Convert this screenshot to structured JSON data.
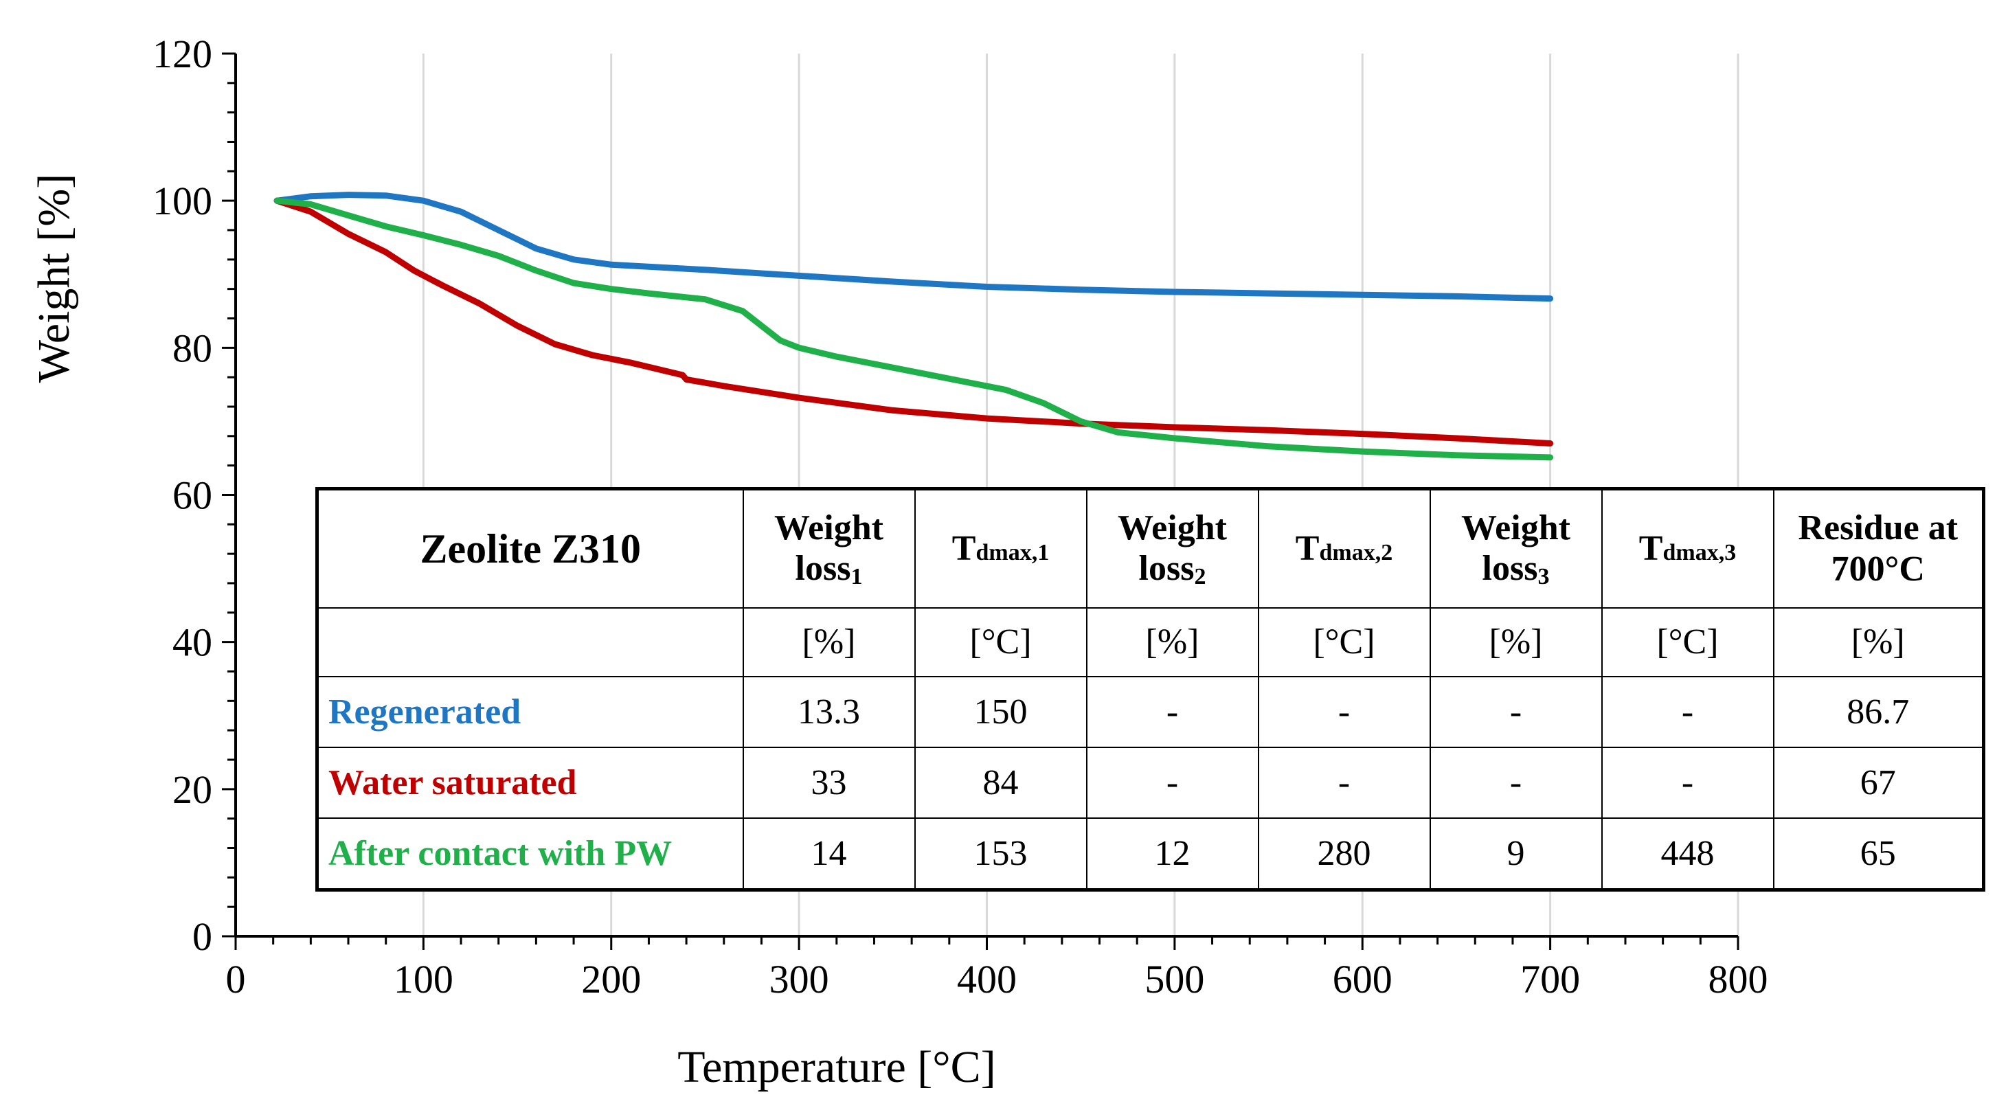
{
  "chart_data": {
    "type": "line",
    "xlabel": "Temperature [°C]",
    "ylabel": "Weight [%]",
    "xlim": [
      0,
      800
    ],
    "ylim": [
      0,
      120
    ],
    "x_ticks": [
      "0",
      "100",
      "200",
      "300",
      "400",
      "500",
      "600",
      "700",
      "800"
    ],
    "y_ticks": [
      "0",
      "20",
      "40",
      "60",
      "80",
      "100",
      "120"
    ],
    "grid": "vertical lines only",
    "series": [
      {
        "name": "Regenerated",
        "color": "#1f77c4",
        "points": [
          [
            22,
            100
          ],
          [
            40,
            100.6
          ],
          [
            60,
            100.8
          ],
          [
            80,
            100.7
          ],
          [
            100,
            100
          ],
          [
            120,
            98.5
          ],
          [
            140,
            96
          ],
          [
            160,
            93.5
          ],
          [
            180,
            92
          ],
          [
            200,
            91.3
          ],
          [
            250,
            90.6
          ],
          [
            300,
            89.8
          ],
          [
            350,
            89
          ],
          [
            400,
            88.3
          ],
          [
            450,
            87.9
          ],
          [
            500,
            87.6
          ],
          [
            550,
            87.4
          ],
          [
            600,
            87.2
          ],
          [
            650,
            87
          ],
          [
            700,
            86.7
          ]
        ]
      },
      {
        "name": "Water saturated",
        "color": "#c00000",
        "points": [
          [
            22,
            100
          ],
          [
            40,
            98.5
          ],
          [
            60,
            95.5
          ],
          [
            80,
            93
          ],
          [
            95,
            90.5
          ],
          [
            110,
            88.5
          ],
          [
            130,
            86
          ],
          [
            150,
            83
          ],
          [
            170,
            80.5
          ],
          [
            190,
            79
          ],
          [
            210,
            78
          ],
          [
            238,
            76.3
          ],
          [
            240,
            75.7
          ],
          [
            260,
            74.8
          ],
          [
            300,
            73.2
          ],
          [
            350,
            71.5
          ],
          [
            400,
            70.4
          ],
          [
            450,
            69.7
          ],
          [
            500,
            69.2
          ],
          [
            550,
            68.8
          ],
          [
            600,
            68.3
          ],
          [
            650,
            67.7
          ],
          [
            700,
            67
          ]
        ]
      },
      {
        "name": "After contact with PW",
        "color": "#1fb04a",
        "points": [
          [
            22,
            100
          ],
          [
            40,
            99.5
          ],
          [
            60,
            98
          ],
          [
            80,
            96.5
          ],
          [
            100,
            95.3
          ],
          [
            120,
            94
          ],
          [
            140,
            92.5
          ],
          [
            160,
            90.5
          ],
          [
            180,
            88.8
          ],
          [
            200,
            88
          ],
          [
            220,
            87.4
          ],
          [
            250,
            86.6
          ],
          [
            270,
            85
          ],
          [
            280,
            83
          ],
          [
            290,
            81
          ],
          [
            300,
            80
          ],
          [
            320,
            78.8
          ],
          [
            350,
            77.3
          ],
          [
            380,
            75.8
          ],
          [
            410,
            74.3
          ],
          [
            430,
            72.5
          ],
          [
            450,
            70
          ],
          [
            470,
            68.5
          ],
          [
            500,
            67.7
          ],
          [
            550,
            66.6
          ],
          [
            600,
            65.9
          ],
          [
            650,
            65.4
          ],
          [
            700,
            65.1
          ]
        ]
      }
    ]
  },
  "table": {
    "header": {
      "title": "Zeolite Z310",
      "col1": {
        "main": "Weight loss",
        "sub": "1"
      },
      "col2": {
        "main": "T",
        "sub": "dmax,1"
      },
      "col3": {
        "main": "Weight loss",
        "sub": "2"
      },
      "col4": {
        "main": "T",
        "sub": "dmax,2"
      },
      "col5": {
        "main": "Weight loss",
        "sub": "3"
      },
      "col6": {
        "main": "T",
        "sub": "dmax,3"
      },
      "col7": "Residue at 700°C"
    },
    "units": [
      "",
      "[%]",
      "[°C]",
      "[%]",
      "[°C]",
      "[%]",
      "[°C]",
      "[%]"
    ],
    "rows": [
      {
        "name": "Regenerated",
        "color": "#1f77c4",
        "values": [
          "13.3",
          "150",
          "-",
          "-",
          "-",
          "-",
          "86.7"
        ]
      },
      {
        "name": "Water saturated",
        "color": "#c00000",
        "values": [
          "33",
          "84",
          "-",
          "-",
          "-",
          "-",
          "67"
        ]
      },
      {
        "name": "After contact with PW",
        "color": "#1fb04a",
        "values": [
          "14",
          "153",
          "12",
          "280",
          "9",
          "448",
          "65"
        ]
      }
    ]
  }
}
